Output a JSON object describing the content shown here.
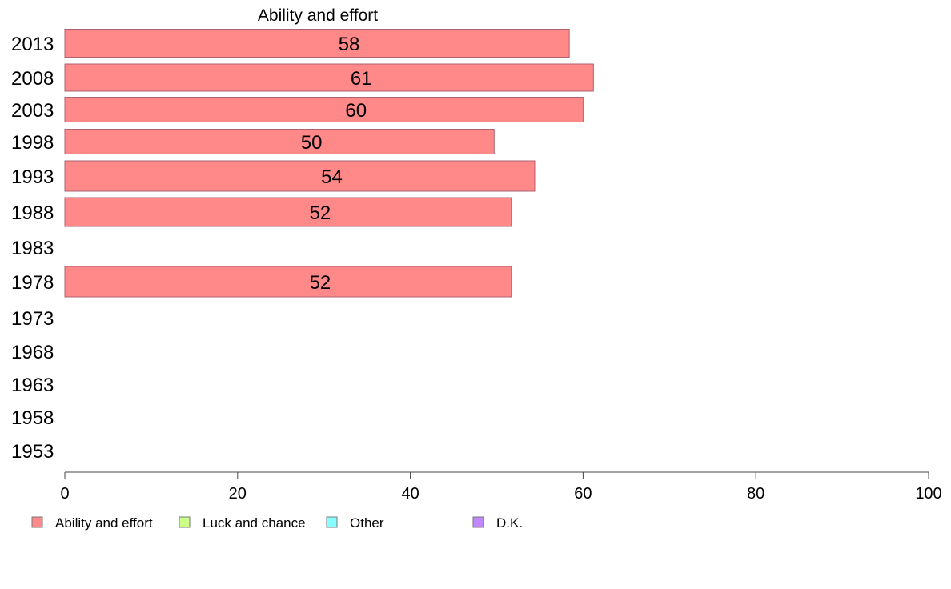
{
  "chart_data": {
    "type": "bar",
    "orientation": "horizontal",
    "title": "Ability and effort",
    "categories": [
      "2013",
      "2008",
      "2003",
      "1998",
      "1993",
      "1988",
      "1983",
      "1978",
      "1973",
      "1968",
      "1963",
      "1958",
      "1953"
    ],
    "series": [
      {
        "name": "Ability and effort",
        "color": "#ff8888",
        "values": [
          58.4,
          61.2,
          60.0,
          49.7,
          54.4,
          51.7,
          null,
          51.7,
          null,
          null,
          null,
          null,
          null
        ],
        "labels": [
          "58",
          "61",
          "60",
          "50",
          "54",
          "52",
          "",
          "52",
          "",
          "",
          "",
          "",
          ""
        ]
      }
    ],
    "xlim": [
      0,
      100
    ],
    "xticks": [
      "0",
      "20",
      "40",
      "60",
      "80",
      "100"
    ],
    "grid": false,
    "legend_position": "bottom",
    "legend": [
      {
        "label": "Ability and effort",
        "color": "#ff8888"
      },
      {
        "label": "Luck and chance",
        "color": "#ccff88"
      },
      {
        "label": "Other",
        "color": "#88ffff"
      },
      {
        "label": "D.K.",
        "color": "#c088ff"
      }
    ]
  }
}
